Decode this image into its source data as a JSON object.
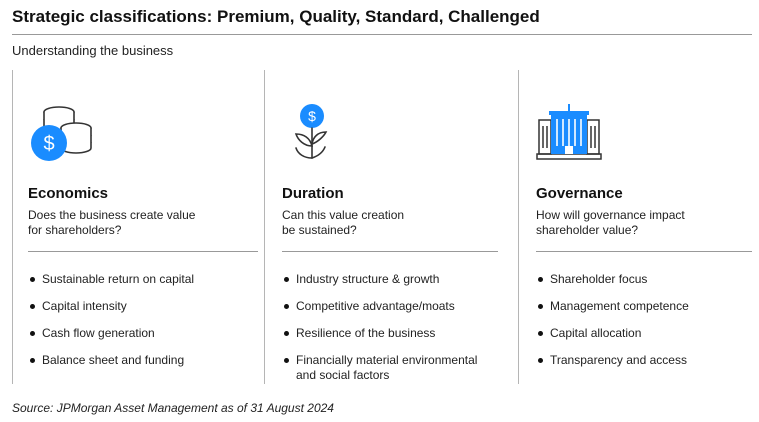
{
  "title": "Strategic classifications: Premium, Quality, Standard, Challenged",
  "subtitle": "Understanding the business",
  "colors": {
    "accent_blue": "#1a8cff",
    "icon_outline": "#333333"
  },
  "columns": [
    {
      "icon": "coins-dollar-icon",
      "heading": "Economics",
      "question_line1": "Does the business create value",
      "question_line2": "for shareholders?",
      "points": [
        "Sustainable return on capital",
        "Capital intensity",
        "Cash flow generation",
        "Balance sheet and funding"
      ]
    },
    {
      "icon": "dollar-plant-icon",
      "heading": "Duration",
      "question_line1": "Can this value creation",
      "question_line2": "be sustained?",
      "points": [
        "Industry structure & growth",
        "Competitive advantage/moats",
        "Resilience of the business",
        "Financially material environmental",
        "and social factors"
      ]
    },
    {
      "icon": "government-building-icon",
      "heading": "Governance",
      "question_line1": "How will governance impact",
      "question_line2": "shareholder value?",
      "points": [
        "Shareholder focus",
        "Management competence",
        "Capital allocation",
        "Transparency and access"
      ]
    }
  ],
  "source": "Source: JPMorgan Asset Management as of 31 August 2024"
}
